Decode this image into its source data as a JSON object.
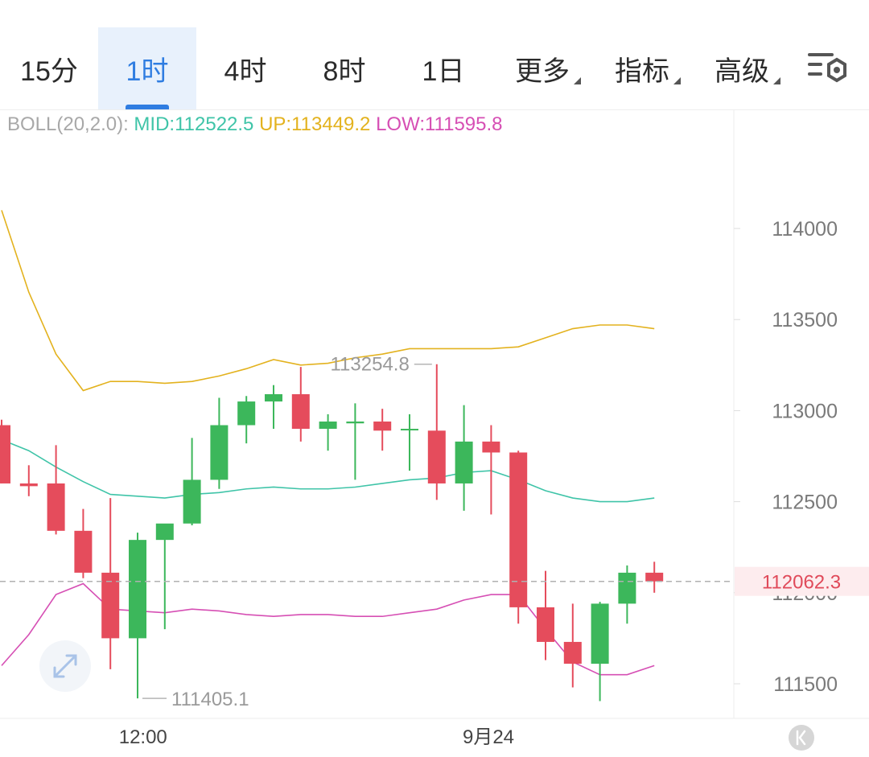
{
  "tabs": [
    {
      "label": "15分",
      "active": false,
      "dropdown": false
    },
    {
      "label": "1时",
      "active": true,
      "dropdown": false
    },
    {
      "label": "4时",
      "active": false,
      "dropdown": false
    },
    {
      "label": "8时",
      "active": false,
      "dropdown": false
    },
    {
      "label": "1日",
      "active": false,
      "dropdown": false
    },
    {
      "label": "更多",
      "active": false,
      "dropdown": true
    },
    {
      "label": "指标",
      "active": false,
      "dropdown": true
    },
    {
      "label": "高级",
      "active": false,
      "dropdown": true
    }
  ],
  "settings_icon": "chart-settings-icon",
  "indicator": {
    "name": "BOLL(20,2.0):",
    "mid": "MID:112522.5",
    "up": "UP:113449.2",
    "low": "LOW:111595.8"
  },
  "colors": {
    "up_candle": "#3cb75b",
    "down_candle": "#e54c5c",
    "mid": "#3fc4a8",
    "upper": "#e3b21e",
    "lower": "#d64fb4",
    "accent": "#2f7de1"
  },
  "chart_data": {
    "type": "candlestick",
    "ylim": [
      111300,
      114650
    ],
    "yticks": [
      "114000",
      "113500",
      "113000",
      "112500",
      "112000",
      "111500"
    ],
    "xticks": [
      {
        "label": "12:00",
        "index": 5.2
      },
      {
        "label": "9月24",
        "index": 17.9
      }
    ],
    "candles": [
      {
        "o": 112920,
        "h": 112950,
        "l": 112600,
        "c": 112600
      },
      {
        "o": 112600,
        "h": 112700,
        "l": 112530,
        "c": 112585
      },
      {
        "o": 112600,
        "h": 112810,
        "l": 112320,
        "c": 112340
      },
      {
        "o": 112340,
        "h": 112460,
        "l": 112080,
        "c": 112110
      },
      {
        "o": 112110,
        "h": 112520,
        "l": 111580,
        "c": 111750
      },
      {
        "o": 111750,
        "h": 112330,
        "l": 111420,
        "c": 112290
      },
      {
        "o": 112290,
        "h": 112370,
        "l": 111800,
        "c": 112380
      },
      {
        "o": 112380,
        "h": 112850,
        "l": 112370,
        "c": 112620
      },
      {
        "o": 112620,
        "h": 113070,
        "l": 112570,
        "c": 112920
      },
      {
        "o": 112920,
        "h": 113080,
        "l": 112820,
        "c": 113050
      },
      {
        "o": 113050,
        "h": 113140,
        "l": 112900,
        "c": 113090
      },
      {
        "o": 113090,
        "h": 113240,
        "l": 112830,
        "c": 112900
      },
      {
        "o": 112900,
        "h": 112980,
        "l": 112780,
        "c": 112940
      },
      {
        "o": 112930,
        "h": 113040,
        "l": 112620,
        "c": 112940
      },
      {
        "o": 112940,
        "h": 113010,
        "l": 112780,
        "c": 112890
      },
      {
        "o": 112900,
        "h": 112980,
        "l": 112670,
        "c": 112900
      },
      {
        "o": 112890,
        "h": 113254.8,
        "l": 112510,
        "c": 112600
      },
      {
        "o": 112600,
        "h": 113030,
        "l": 112450,
        "c": 112830
      },
      {
        "o": 112830,
        "h": 112920,
        "l": 112430,
        "c": 112770
      },
      {
        "o": 112770,
        "h": 112780,
        "l": 111830,
        "c": 111920
      },
      {
        "o": 111920,
        "h": 112120,
        "l": 111630,
        "c": 111730
      },
      {
        "o": 111730,
        "h": 111940,
        "l": 111480,
        "c": 111610
      },
      {
        "o": 111610,
        "h": 111950,
        "l": 111405.1,
        "c": 111940
      },
      {
        "o": 111940,
        "h": 112150,
        "l": 111830,
        "c": 112110
      },
      {
        "o": 112110,
        "h": 112170,
        "l": 112000,
        "c": 112062.3
      }
    ],
    "mid": [
      112840,
      112780,
      112690,
      112610,
      112540,
      112530,
      112520,
      112540,
      112550,
      112570,
      112580,
      112570,
      112570,
      112580,
      112600,
      112620,
      112630,
      112660,
      112670,
      112620,
      112560,
      112520,
      112500,
      112500,
      112520
    ],
    "upper": [
      114100,
      113650,
      113310,
      113110,
      113160,
      113160,
      113150,
      113160,
      113190,
      113230,
      113280,
      113250,
      113260,
      113290,
      113310,
      113340,
      113340,
      113340,
      113340,
      113350,
      113400,
      113450,
      113470,
      113470,
      113450
    ],
    "lower": [
      111600,
      111770,
      111990,
      112050,
      111910,
      111900,
      111890,
      111910,
      111900,
      111880,
      111870,
      111880,
      111880,
      111870,
      111870,
      111890,
      111910,
      111960,
      111990,
      111990,
      111800,
      111620,
      111550,
      111550,
      111600
    ],
    "current_price": "112062.3",
    "annotations": {
      "high_label": "113254.8",
      "high_index": 16,
      "low_label": "111405.1",
      "low_index": 5
    }
  }
}
